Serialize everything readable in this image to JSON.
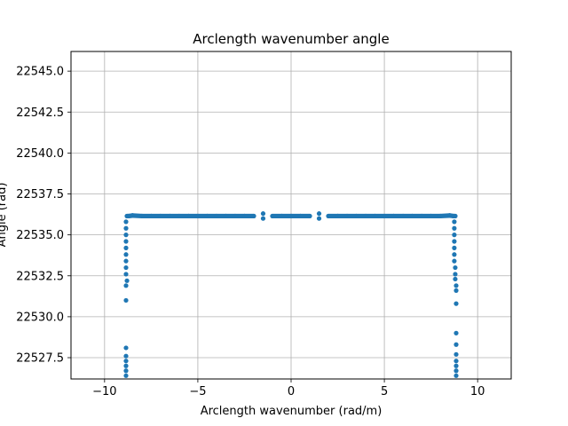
{
  "chart_data": {
    "type": "scatter",
    "title": "Arclength wavenumber angle",
    "xlabel": "Arclength wavenumber (rad/m)",
    "ylabel": "Angle (rad)",
    "xlim": [
      -11.8,
      11.8
    ],
    "ylim": [
      22526.2,
      22546.2
    ],
    "xticks": [
      -10,
      -5,
      0,
      5,
      10
    ],
    "xtick_labels": [
      "−10",
      "−5",
      "0",
      "5",
      "10"
    ],
    "yticks": [
      22527.5,
      22530.0,
      22532.5,
      22535.0,
      22537.5,
      22540.0,
      22542.5,
      22545.0
    ],
    "ytick_labels": [
      "22527.5",
      "22530.0",
      "22532.5",
      "22535.0",
      "22537.5",
      "22540.0",
      "22542.5",
      "22545.0"
    ],
    "grid": true,
    "color": "#1f77b4",
    "series": [
      {
        "points": [
          [
            -8.8,
            22536.15
          ],
          [
            -8.7,
            22536.15
          ],
          [
            -8.5,
            22536.18
          ],
          [
            -8.0,
            22536.15
          ],
          [
            -7.5,
            22536.15
          ],
          [
            -7.0,
            22536.15
          ],
          [
            -6.5,
            22536.15
          ],
          [
            -6.0,
            22536.15
          ],
          [
            -5.5,
            22536.15
          ],
          [
            -5.0,
            22536.15
          ],
          [
            -4.5,
            22536.15
          ],
          [
            -4.0,
            22536.15
          ],
          [
            -3.5,
            22536.15
          ],
          [
            -3.0,
            22536.15
          ],
          [
            -2.5,
            22536.15
          ],
          [
            -2.0,
            22536.15
          ],
          [
            -1.5,
            22536.3
          ],
          [
            -1.5,
            22536.0
          ],
          [
            -1.0,
            22536.15
          ],
          [
            -0.5,
            22536.15
          ],
          [
            0.0,
            22536.15
          ],
          [
            0.5,
            22536.15
          ],
          [
            1.0,
            22536.15
          ],
          [
            1.5,
            22536.3
          ],
          [
            1.5,
            22536.0
          ],
          [
            2.0,
            22536.15
          ],
          [
            2.5,
            22536.15
          ],
          [
            3.0,
            22536.15
          ],
          [
            3.5,
            22536.15
          ],
          [
            4.0,
            22536.15
          ],
          [
            4.5,
            22536.15
          ],
          [
            5.0,
            22536.15
          ],
          [
            5.5,
            22536.15
          ],
          [
            6.0,
            22536.15
          ],
          [
            6.5,
            22536.15
          ],
          [
            7.0,
            22536.15
          ],
          [
            7.5,
            22536.15
          ],
          [
            8.0,
            22536.15
          ],
          [
            8.5,
            22536.18
          ],
          [
            8.7,
            22536.15
          ],
          [
            8.8,
            22536.15
          ],
          [
            -8.85,
            22535.8
          ],
          [
            -8.85,
            22535.4
          ],
          [
            -8.85,
            22535.0
          ],
          [
            -8.85,
            22534.6
          ],
          [
            -8.85,
            22534.2
          ],
          [
            -8.85,
            22533.8
          ],
          [
            -8.85,
            22533.4
          ],
          [
            -8.85,
            22533.0
          ],
          [
            -8.85,
            22532.6
          ],
          [
            -8.8,
            22532.2
          ],
          [
            -8.85,
            22531.9
          ],
          [
            -8.85,
            22531.0
          ],
          [
            -8.85,
            22528.1
          ],
          [
            -8.85,
            22527.6
          ],
          [
            -8.85,
            22527.3
          ],
          [
            -8.85,
            22527.0
          ],
          [
            -8.85,
            22526.7
          ],
          [
            -8.85,
            22526.4
          ],
          [
            8.75,
            22535.8
          ],
          [
            8.75,
            22535.4
          ],
          [
            8.75,
            22535.0
          ],
          [
            8.75,
            22534.6
          ],
          [
            8.75,
            22534.2
          ],
          [
            8.75,
            22533.8
          ],
          [
            8.75,
            22533.4
          ],
          [
            8.8,
            22533.0
          ],
          [
            8.8,
            22532.6
          ],
          [
            8.8,
            22532.3
          ],
          [
            8.85,
            22531.9
          ],
          [
            8.85,
            22531.6
          ],
          [
            8.85,
            22530.8
          ],
          [
            8.85,
            22529.0
          ],
          [
            8.85,
            22528.3
          ],
          [
            8.85,
            22527.7
          ],
          [
            8.85,
            22527.3
          ],
          [
            8.85,
            22527.0
          ],
          [
            8.85,
            22526.7
          ],
          [
            8.85,
            22526.4
          ]
        ]
      }
    ]
  }
}
